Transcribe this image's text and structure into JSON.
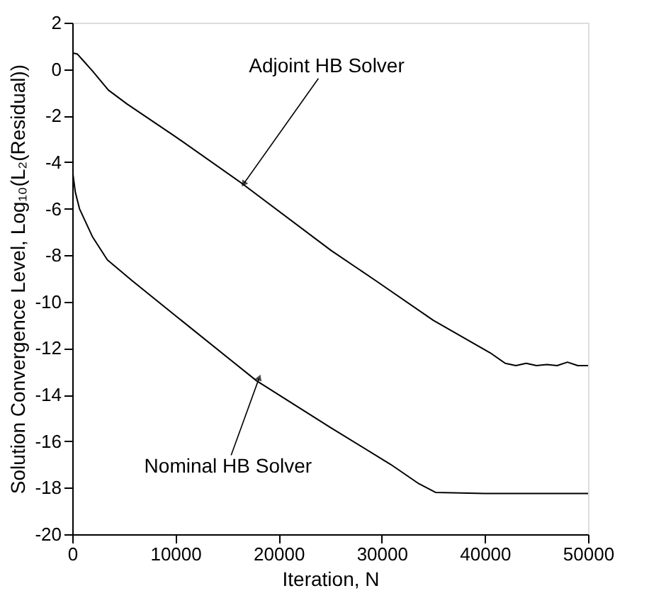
{
  "chart_data": {
    "type": "line",
    "xlabel": "Iteration, N",
    "ylabel": "Solution Convergence Level, Log₁₀(L₂(Residual))",
    "xlim": [
      0,
      50000
    ],
    "xticks": [
      0,
      10000,
      20000,
      30000,
      40000,
      50000
    ],
    "ylim": [
      -20,
      2
    ],
    "yticks": [
      2,
      0,
      -2,
      -4,
      -6,
      -8,
      -10,
      -12,
      -14,
      -16,
      -18,
      -20
    ],
    "grid": false,
    "marker": "none",
    "line_style": "solid",
    "series": [
      {
        "color": "#000000",
        "x": [
          0,
          500,
          1000,
          2000,
          3500,
          5320,
          10000,
          16410,
          25100,
          29430,
          35000,
          40520,
          41970,
          43000,
          44000,
          45000,
          46000,
          47000,
          48000,
          49000,
          50000
        ],
        "values": [
          0.7,
          0.65,
          0.4,
          -0.1,
          -0.9,
          -1.5,
          -2.9,
          -4.9,
          -7.8,
          -9.1,
          -10.8,
          -12.2,
          -12.65,
          -12.75,
          -12.65,
          -12.75,
          -12.7,
          -12.75,
          -12.6,
          -12.75,
          -12.75
        ]
      },
      {
        "color": "#000000",
        "x": [
          0,
          300,
          700,
          1950,
          3400,
          5810,
          10000,
          17860,
          25000,
          30870,
          33500,
          35210,
          40000,
          45000,
          50000
        ],
        "values": [
          -4.3,
          -5.3,
          -6.0,
          -7.2,
          -8.2,
          -9.1,
          -10.6,
          -13.4,
          -15.4,
          -17.0,
          -17.8,
          -18.2,
          -18.25,
          -18.25,
          -18.25
        ]
      }
    ],
    "annotations": [
      {
        "text": "Adjoint HB Solver",
        "x": 16660,
        "y": -4.9
      },
      {
        "text": "Nominal HB Solver",
        "x": 18100,
        "y": -13.3
      }
    ]
  }
}
